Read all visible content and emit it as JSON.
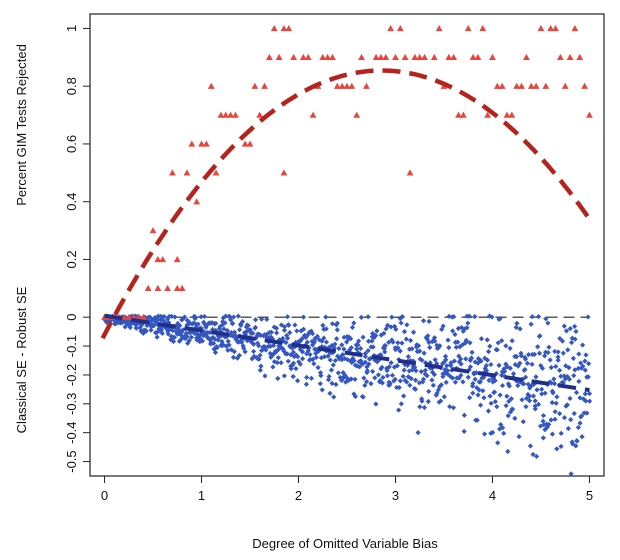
{
  "chart_data": {
    "type": "scatter",
    "xlabel": "Degree of Omitted Variable Bias",
    "ylabel_upper": "Percent GIM Tests Rejected",
    "ylabel_lower": "Classical SE - Robust SE",
    "xlim": [
      -0.15,
      5.15
    ],
    "ylim": [
      -0.55,
      1.05
    ],
    "x_ticks": [
      0,
      1,
      2,
      3,
      4,
      5
    ],
    "y_ticks_upper": [
      0,
      0.2,
      0.4,
      0.6,
      0.8,
      1
    ],
    "y_ticks_lower": [
      -0.1,
      -0.2,
      -0.3,
      -0.4,
      -0.5
    ],
    "reference_line_y": 0,
    "colors": {
      "triangles": "#e8453c",
      "trend_upper": "#b5231c",
      "diamonds": "#3557c2",
      "trend_lower": "#1f2f8a",
      "zero_line": "#222222"
    },
    "series": [
      {
        "marker": "triangle",
        "points": [
          [
            0.0,
            0.0
          ],
          [
            0.05,
            0.0
          ],
          [
            0.1,
            0.0
          ],
          [
            0.15,
            0.0
          ],
          [
            0.2,
            0.0
          ],
          [
            0.25,
            0.0
          ],
          [
            0.3,
            0.0
          ],
          [
            0.35,
            0.0
          ],
          [
            0.4,
            0.0
          ],
          [
            0.45,
            0.1
          ],
          [
            0.5,
            0.3
          ],
          [
            0.55,
            0.1
          ],
          [
            0.55,
            0.2
          ],
          [
            0.6,
            0.2
          ],
          [
            0.65,
            0.1
          ],
          [
            0.7,
            0.5
          ],
          [
            0.75,
            0.2
          ],
          [
            0.75,
            0.1
          ],
          [
            0.8,
            0.1
          ],
          [
            0.85,
            0.5
          ],
          [
            0.9,
            0.6
          ],
          [
            0.95,
            0.4
          ],
          [
            1.0,
            0.6
          ],
          [
            1.05,
            0.6
          ],
          [
            1.1,
            0.8
          ],
          [
            1.15,
            0.5
          ],
          [
            1.2,
            0.7
          ],
          [
            1.25,
            0.7
          ],
          [
            1.3,
            0.7
          ],
          [
            1.35,
            0.7
          ],
          [
            1.45,
            0.6
          ],
          [
            1.5,
            0.6
          ],
          [
            1.55,
            0.8
          ],
          [
            1.6,
            0.7
          ],
          [
            1.65,
            0.8
          ],
          [
            1.7,
            0.9
          ],
          [
            1.75,
            1.0
          ],
          [
            1.8,
            0.9
          ],
          [
            1.85,
            0.5
          ],
          [
            1.85,
            1.0
          ],
          [
            1.9,
            1.0
          ],
          [
            1.95,
            0.9
          ],
          [
            2.05,
            0.9
          ],
          [
            2.1,
            0.9
          ],
          [
            2.15,
            0.7
          ],
          [
            2.2,
            0.8
          ],
          [
            2.25,
            0.9
          ],
          [
            2.3,
            0.9
          ],
          [
            2.35,
            0.9
          ],
          [
            2.4,
            0.8
          ],
          [
            2.45,
            0.8
          ],
          [
            2.5,
            0.8
          ],
          [
            2.55,
            0.8
          ],
          [
            2.6,
            0.7
          ],
          [
            2.65,
            0.9
          ],
          [
            2.7,
            0.8
          ],
          [
            2.8,
            0.9
          ],
          [
            2.85,
            0.9
          ],
          [
            2.9,
            0.9
          ],
          [
            2.95,
            1.0
          ],
          [
            3.0,
            0.9
          ],
          [
            3.05,
            1.0
          ],
          [
            3.1,
            0.9
          ],
          [
            3.15,
            0.5
          ],
          [
            3.2,
            0.9
          ],
          [
            3.25,
            0.9
          ],
          [
            3.3,
            0.9
          ],
          [
            3.4,
            0.9
          ],
          [
            3.45,
            1.0
          ],
          [
            3.5,
            0.8
          ],
          [
            3.55,
            0.9
          ],
          [
            3.6,
            0.9
          ],
          [
            3.65,
            0.7
          ],
          [
            3.7,
            0.7
          ],
          [
            3.75,
            1.0
          ],
          [
            3.8,
            0.9
          ],
          [
            3.85,
            0.9
          ],
          [
            3.9,
            1.0
          ],
          [
            3.95,
            0.7
          ],
          [
            4.0,
            0.9
          ],
          [
            4.05,
            0.8
          ],
          [
            4.1,
            0.8
          ],
          [
            4.15,
            0.7
          ],
          [
            4.2,
            0.7
          ],
          [
            4.25,
            0.8
          ],
          [
            4.3,
            0.8
          ],
          [
            4.35,
            0.9
          ],
          [
            4.4,
            0.8
          ],
          [
            4.45,
            0.8
          ],
          [
            4.5,
            1.0
          ],
          [
            4.55,
            0.8
          ],
          [
            4.6,
            1.0
          ],
          [
            4.65,
            1.0
          ],
          [
            4.7,
            0.9
          ],
          [
            4.75,
            0.8
          ],
          [
            4.8,
            0.9
          ],
          [
            4.85,
            1.0
          ],
          [
            4.9,
            0.9
          ],
          [
            4.95,
            0.8
          ],
          [
            5.0,
            0.7
          ]
        ]
      },
      {
        "marker": "trend-dashed",
        "quadratic": [
          -0.06,
          0.64,
          -0.112
        ],
        "x_range": [
          -0.02,
          5.0
        ]
      },
      {
        "marker": "diamond",
        "count": 1100,
        "x_range": [
          0,
          5
        ],
        "mean_slope": -0.05,
        "spread_base": 0.008,
        "spread_slope": 0.022
      },
      {
        "marker": "trend-dashed",
        "linear": [
          0.005,
          -0.0515
        ],
        "x_range": [
          0,
          5.0
        ]
      }
    ]
  }
}
